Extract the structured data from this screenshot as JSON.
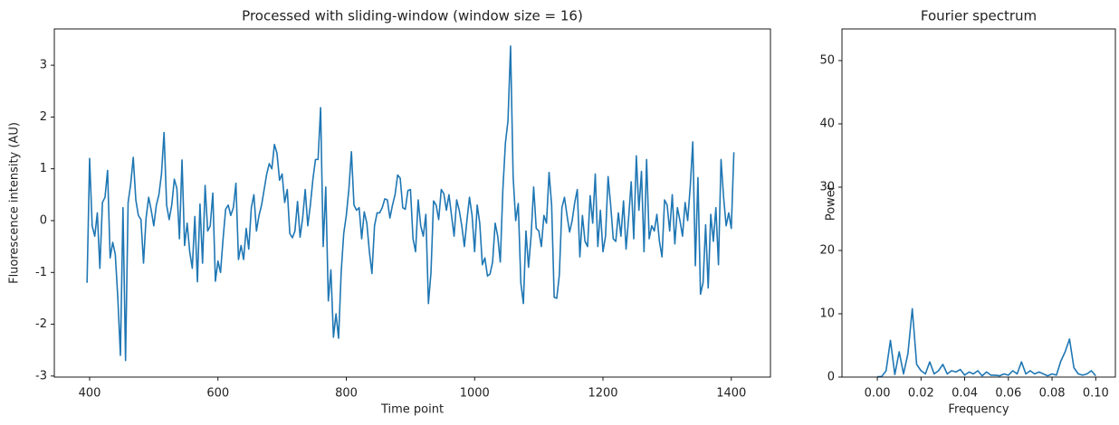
{
  "chart_data": [
    {
      "type": "line",
      "title": "Processed with sliding-window (window size = 16)",
      "x_label": "Time point",
      "y_label": "Fluorescence intensity (AU)",
      "color": "#1f77b4",
      "x": [
        396,
        400,
        404,
        408,
        412,
        416,
        420,
        424,
        428,
        432,
        436,
        440,
        444,
        448,
        452,
        456,
        460,
        464,
        468,
        472,
        476,
        480,
        484,
        488,
        492,
        496,
        500,
        504,
        508,
        512,
        516,
        520,
        524,
        528,
        532,
        536,
        540,
        544,
        548,
        552,
        556,
        560,
        564,
        568,
        572,
        576,
        580,
        584,
        588,
        592,
        596,
        600,
        604,
        608,
        612,
        616,
        620,
        624,
        628,
        632,
        636,
        640,
        644,
        648,
        652,
        656,
        660,
        664,
        668,
        672,
        676,
        680,
        684,
        688,
        692,
        696,
        700,
        704,
        708,
        712,
        716,
        720,
        724,
        728,
        732,
        736,
        740,
        744,
        748,
        752,
        756,
        760,
        764,
        768,
        772,
        776,
        780,
        784,
        788,
        792,
        796,
        800,
        804,
        808,
        812,
        816,
        820,
        824,
        828,
        832,
        836,
        840,
        844,
        848,
        852,
        856,
        860,
        864,
        868,
        872,
        876,
        880,
        884,
        888,
        892,
        896,
        900,
        904,
        908,
        912,
        916,
        920,
        924,
        928,
        932,
        936,
        940,
        944,
        948,
        952,
        956,
        960,
        964,
        968,
        972,
        976,
        980,
        984,
        988,
        992,
        996,
        1000,
        1004,
        1008,
        1012,
        1016,
        1020,
        1024,
        1028,
        1032,
        1036,
        1040,
        1044,
        1048,
        1052,
        1056,
        1060,
        1064,
        1068,
        1072,
        1076,
        1080,
        1084,
        1088,
        1092,
        1096,
        1100,
        1104,
        1108,
        1112,
        1116,
        1120,
        1124,
        1128,
        1132,
        1136,
        1140,
        1144,
        1148,
        1152,
        1156,
        1160,
        1164,
        1168,
        1172,
        1176,
        1180,
        1184,
        1188,
        1192,
        1196,
        1200,
        1204,
        1208,
        1212,
        1216,
        1220,
        1224,
        1228,
        1232,
        1236,
        1240,
        1244,
        1248,
        1252,
        1256,
        1260,
        1264,
        1268,
        1272,
        1276,
        1280,
        1284,
        1288,
        1292,
        1296,
        1300,
        1304,
        1308,
        1312,
        1316,
        1320,
        1324,
        1328,
        1332,
        1336,
        1340,
        1344,
        1348,
        1352,
        1356,
        1360,
        1364,
        1368,
        1372,
        1376,
        1380,
        1384,
        1388,
        1392,
        1396,
        1400,
        1404
      ],
      "values": [
        -1.2,
        1.2,
        -0.1,
        -0.3,
        0.15,
        -0.92,
        0.35,
        0.45,
        0.97,
        -0.72,
        -0.42,
        -0.65,
        -1.5,
        -2.6,
        0.25,
        -2.7,
        0.35,
        0.7,
        1.22,
        0.4,
        0.1,
        0.02,
        -0.82,
        0.05,
        0.45,
        0.2,
        -0.1,
        0.3,
        0.5,
        0.9,
        1.7,
        0.3,
        0.02,
        0.3,
        0.8,
        0.62,
        -0.35,
        1.17,
        -0.48,
        -0.05,
        -0.6,
        -0.92,
        0.08,
        -1.18,
        0.32,
        -0.82,
        0.68,
        -0.2,
        -0.1,
        0.53,
        -1.17,
        -0.78,
        -1.0,
        -0.35,
        0.22,
        0.3,
        0.1,
        0.25,
        0.72,
        -0.75,
        -0.48,
        -0.75,
        -0.15,
        -0.55,
        0.25,
        0.5,
        -0.2,
        0.1,
        0.3,
        0.6,
        0.9,
        1.1,
        1.0,
        1.47,
        1.3,
        0.78,
        0.9,
        0.35,
        0.6,
        -0.25,
        -0.33,
        -0.2,
        0.37,
        -0.32,
        0.05,
        0.6,
        -0.1,
        0.3,
        0.8,
        1.18,
        1.18,
        2.18,
        -0.5,
        0.65,
        -1.55,
        -0.95,
        -2.25,
        -1.8,
        -2.27,
        -1.0,
        -0.25,
        0.1,
        0.6,
        1.33,
        0.3,
        0.2,
        0.25,
        -0.35,
        0.17,
        -0.05,
        -0.6,
        -1.02,
        -0.1,
        0.15,
        0.15,
        0.25,
        0.42,
        0.4,
        0.05,
        0.3,
        0.5,
        0.88,
        0.82,
        0.25,
        0.22,
        0.58,
        0.6,
        -0.35,
        -0.6,
        0.4,
        -0.1,
        -0.3,
        0.12,
        -1.6,
        -1.0,
        0.38,
        0.3,
        0.02,
        0.6,
        0.52,
        0.2,
        0.5,
        0.1,
        -0.3,
        0.4,
        0.2,
        -0.1,
        -0.5,
        0.0,
        0.45,
        0.1,
        -0.6,
        0.3,
        -0.05,
        -0.85,
        -0.72,
        -1.07,
        -1.03,
        -0.8,
        -0.05,
        -0.3,
        -0.8,
        0.6,
        1.5,
        1.93,
        3.37,
        0.85,
        0.0,
        0.33,
        -1.2,
        -1.6,
        -0.2,
        -0.9,
        -0.3,
        0.65,
        -0.15,
        -0.2,
        -0.5,
        0.1,
        -0.05,
        0.93,
        0.3,
        -1.48,
        -1.5,
        -1.05,
        0.25,
        0.45,
        0.1,
        -0.22,
        0.0,
        0.35,
        0.6,
        -0.7,
        0.1,
        -0.4,
        -0.5,
        0.48,
        -0.05,
        0.9,
        -0.5,
        0.2,
        -0.6,
        -0.3,
        0.85,
        0.3,
        -0.35,
        -0.4,
        0.15,
        -0.3,
        0.38,
        -0.55,
        0.05,
        0.75,
        -0.35,
        1.25,
        0.2,
        0.95,
        -0.6,
        1.18,
        -0.35,
        -0.1,
        -0.2,
        0.12,
        -0.4,
        -0.7,
        0.4,
        0.3,
        -0.2,
        0.5,
        -0.45,
        0.25,
        0.0,
        -0.3,
        0.35,
        0.0,
        0.65,
        1.52,
        -0.87,
        0.83,
        -1.42,
        -1.2,
        -0.08,
        -1.3,
        0.12,
        -0.4,
        0.25,
        -0.85,
        1.18,
        0.45,
        -0.1,
        0.15,
        -0.15,
        1.32
      ],
      "xlim": [
        345,
        1461
      ],
      "ylim": [
        -3.02,
        3.7
      ],
      "xticks": [
        400,
        600,
        800,
        1000,
        1200,
        1400
      ],
      "yticks": [
        -3,
        -2,
        -1,
        0,
        1,
        2,
        3
      ]
    },
    {
      "type": "line",
      "title": "Fourier spectrum",
      "x_label": "Frequency",
      "y_label": "Power",
      "color": "#1f77b4",
      "x": [
        0,
        0.002,
        0.004,
        0.006,
        0.008,
        0.01,
        0.012,
        0.014,
        0.016,
        0.018,
        0.02,
        0.022,
        0.024,
        0.026,
        0.028,
        0.03,
        0.032,
        0.034,
        0.036,
        0.038,
        0.04,
        0.042,
        0.044,
        0.046,
        0.048,
        0.05,
        0.052,
        0.054,
        0.056,
        0.058,
        0.06,
        0.062,
        0.064,
        0.066,
        0.068,
        0.07,
        0.072,
        0.074,
        0.076,
        0.078,
        0.08,
        0.082,
        0.084,
        0.086,
        0.088,
        0.09,
        0.092,
        0.094,
        0.096,
        0.098,
        0.1
      ],
      "values": [
        0.05,
        0.1,
        1.0,
        5.8,
        0.4,
        4.0,
        0.5,
        3.7,
        10.8,
        2.0,
        1.0,
        0.5,
        2.4,
        0.5,
        1.0,
        2.0,
        0.5,
        1.0,
        0.8,
        1.2,
        0.3,
        0.8,
        0.5,
        1.0,
        0.2,
        0.8,
        0.3,
        0.3,
        0.2,
        0.5,
        0.3,
        1.0,
        0.5,
        2.4,
        0.5,
        1.0,
        0.5,
        0.8,
        0.5,
        0.2,
        0.5,
        0.3,
        2.5,
        4.0,
        6.0,
        1.5,
        0.5,
        0.3,
        0.5,
        1.0,
        0.2
      ],
      "xlim": [
        -0.0162,
        0.109
      ],
      "ylim": [
        0,
        55
      ],
      "xticks": [
        {
          "value": 0,
          "label": "0.00"
        },
        {
          "value": 0.02,
          "label": "0.02"
        },
        {
          "value": 0.04,
          "label": "0.04"
        },
        {
          "value": 0.06,
          "label": "0.06"
        },
        {
          "value": 0.08,
          "label": "0.08"
        },
        {
          "value": 0.1,
          "label": "0.10"
        }
      ],
      "yticks": [
        0,
        10,
        20,
        30,
        40,
        50
      ]
    }
  ]
}
